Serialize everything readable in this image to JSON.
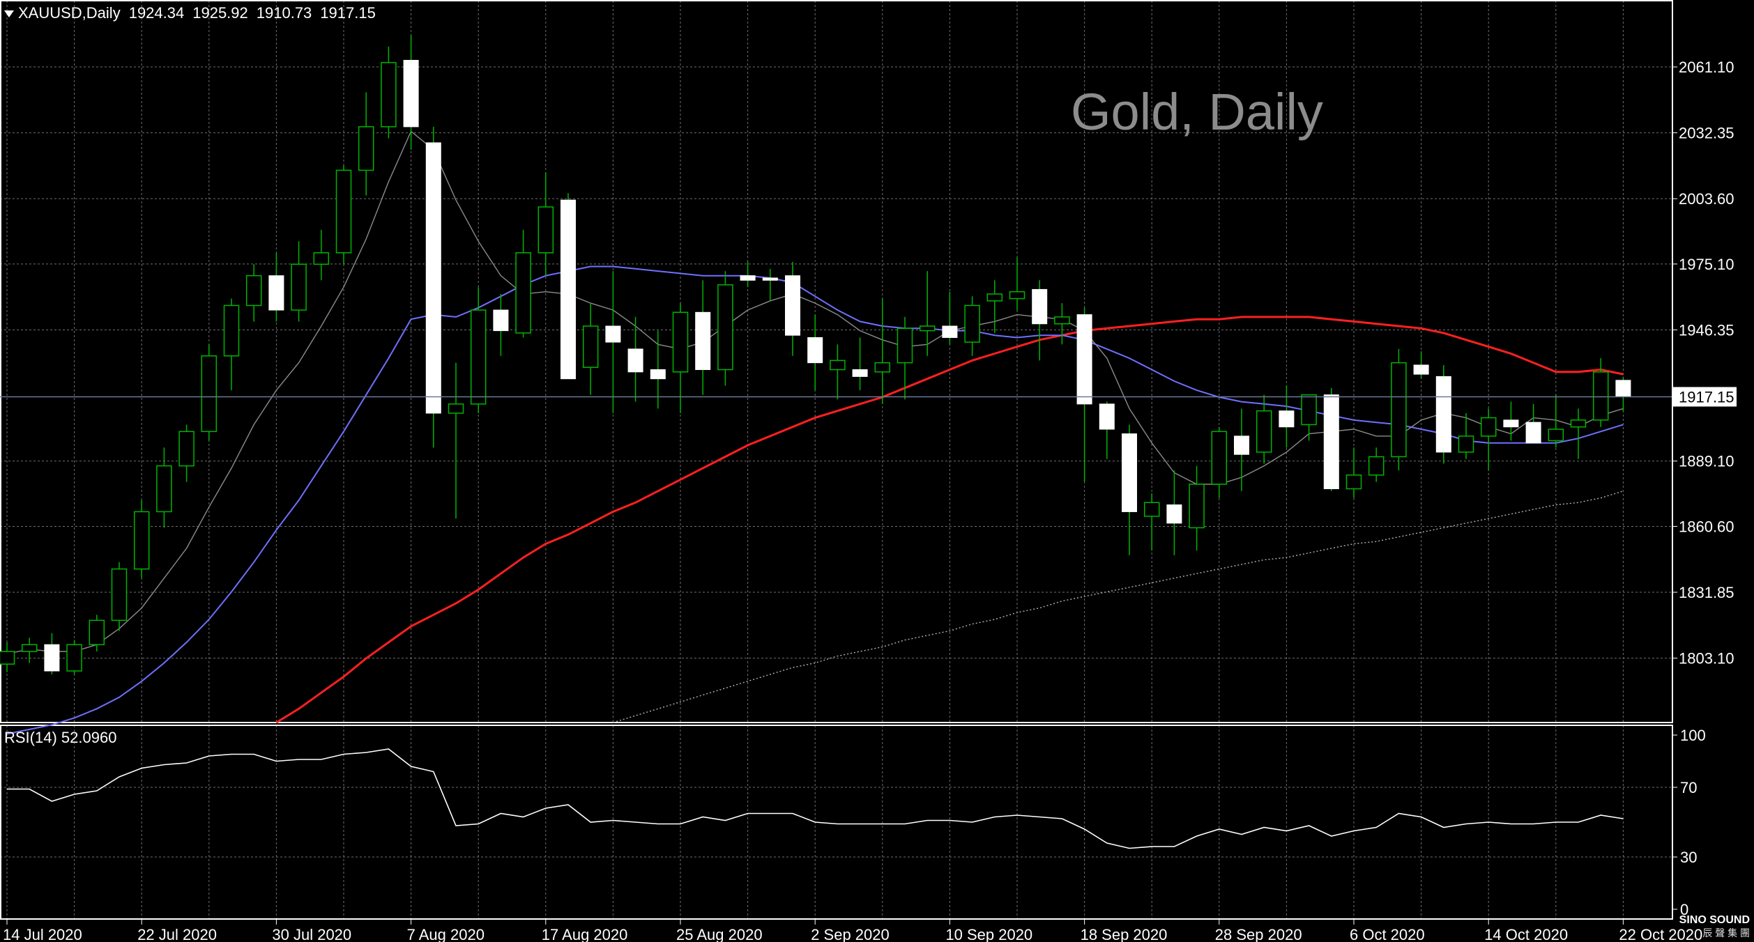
{
  "header": {
    "symbol_timeframe": "XAUUSD,Daily",
    "open": "1924.34",
    "high": "1925.92",
    "low": "1910.73",
    "close": "1917.15"
  },
  "watermark": "Gold, Daily",
  "rsi_label": "RSI(14) 52.0960",
  "brand": {
    "name": "SINO SOUND",
    "sub": "辰 聲 集 團"
  },
  "colors": {
    "background": "#000000",
    "grid": "#6f6f6f",
    "bull_candle_fill": "#000000",
    "bull_candle_outline": "#00b400",
    "bear_candle_fill": "#ffffff",
    "wick": "#00b400",
    "ma_fast": "#8c8c8c",
    "ma_mid": "#7070ff",
    "ma_slow": "#ff2020",
    "ma_long": "#b4b4b4",
    "rsi_line": "#ffffff",
    "price_line": "#6a7a9a"
  },
  "chart_data": [
    {
      "type": "candlestick",
      "instrument": "XAUUSD",
      "timeframe": "Daily",
      "watermark": "Gold, Daily",
      "ylim": [
        1775,
        2090
      ],
      "y_ticks": [
        "2061.10",
        "2032.35",
        "2003.60",
        "1975.10",
        "1946.35",
        "1917.15",
        "1889.10",
        "1860.60",
        "1831.85",
        "1803.10"
      ],
      "x_tick_labels": [
        "14 Jul 2020",
        "22 Jul 2020",
        "30 Jul 2020",
        "7 Aug 2020",
        "17 Aug 2020",
        "25 Aug 2020",
        "2 Sep 2020",
        "10 Sep 2020",
        "18 Sep 2020",
        "28 Sep 2020",
        "6 Oct 2020",
        "14 Oct 2020",
        "22 Oct 2020"
      ],
      "x_tick_bar_index": [
        0,
        6,
        12,
        18,
        24,
        30,
        36,
        42,
        48,
        54,
        60,
        66,
        72
      ],
      "current_price": "1917.15",
      "candles": [
        [
          1800.5,
          1810,
          1797,
          1806
        ],
        [
          1806,
          1812,
          1801,
          1809
        ],
        [
          1809,
          1814,
          1796,
          1797.5
        ],
        [
          1797.5,
          1811,
          1796,
          1809
        ],
        [
          1809,
          1822,
          1806,
          1819.6
        ],
        [
          1819.6,
          1845,
          1815,
          1842
        ],
        [
          1842,
          1872,
          1838,
          1867
        ],
        [
          1867,
          1895,
          1860,
          1887
        ],
        [
          1887,
          1905,
          1880,
          1902
        ],
        [
          1902,
          1940,
          1898,
          1935
        ],
        [
          1935,
          1960,
          1920,
          1957
        ],
        [
          1957,
          1975,
          1950,
          1970
        ],
        [
          1970,
          1980,
          1950,
          1955
        ],
        [
          1955,
          1985,
          1950,
          1975
        ],
        [
          1975,
          1990,
          1968,
          1980
        ],
        [
          1980,
          2018,
          1975,
          2016
        ],
        [
          2016,
          2050,
          2005,
          2035
        ],
        [
          2035,
          2070,
          2030,
          2063
        ],
        [
          2064,
          2075,
          2025,
          2035
        ],
        [
          2028,
          2035,
          1895,
          1910
        ],
        [
          1910,
          1932,
          1864,
          1914
        ],
        [
          1914,
          1965,
          1910,
          1955
        ],
        [
          1955,
          1962,
          1935,
          1946
        ],
        [
          1945,
          1990,
          1943,
          1980
        ],
        [
          1980,
          2015,
          1970,
          2000
        ],
        [
          2003,
          2006,
          1925,
          1925
        ],
        [
          1930,
          1958,
          1918,
          1948
        ],
        [
          1948,
          1972,
          1910,
          1941
        ],
        [
          1938,
          1952,
          1915,
          1928
        ],
        [
          1929,
          1946,
          1912,
          1925
        ],
        [
          1928,
          1958,
          1910,
          1954
        ],
        [
          1954,
          1968,
          1918,
          1929
        ],
        [
          1929,
          1972,
          1922,
          1966
        ],
        [
          1970,
          1976,
          1965,
          1968
        ],
        [
          1969,
          1973,
          1959,
          1968
        ],
        [
          1970,
          1976,
          1935,
          1944
        ],
        [
          1943,
          1953,
          1920,
          1932
        ],
        [
          1929,
          1940,
          1916,
          1933
        ],
        [
          1929,
          1943,
          1920,
          1926
        ],
        [
          1928,
          1960,
          1914,
          1932
        ],
        [
          1932,
          1952,
          1916,
          1947
        ],
        [
          1946,
          1972,
          1935,
          1948
        ],
        [
          1948,
          1963,
          1940,
          1943
        ],
        [
          1941,
          1961,
          1935,
          1957
        ],
        [
          1959,
          1968,
          1945,
          1962
        ],
        [
          1960,
          1978,
          1955,
          1963
        ],
        [
          1964,
          1968,
          1933,
          1949
        ],
        [
          1949,
          1958,
          1940,
          1952
        ],
        [
          1953,
          1956,
          1880,
          1914
        ],
        [
          1914,
          1915,
          1890,
          1903
        ],
        [
          1901,
          1905,
          1848,
          1867
        ],
        [
          1865,
          1875,
          1850,
          1871
        ],
        [
          1870,
          1885,
          1848,
          1862
        ],
        [
          1860,
          1887,
          1850,
          1879
        ],
        [
          1879,
          1904,
          1873,
          1902
        ],
        [
          1900,
          1912,
          1876,
          1892
        ],
        [
          1893,
          1918,
          1888,
          1911
        ],
        [
          1911,
          1922,
          1895,
          1904
        ],
        [
          1905,
          1918,
          1898,
          1918
        ],
        [
          1918,
          1921,
          1876,
          1877
        ],
        [
          1877,
          1895,
          1873,
          1883
        ],
        [
          1883,
          1895,
          1880,
          1891
        ],
        [
          1891,
          1938,
          1885,
          1932
        ],
        [
          1931,
          1937,
          1925,
          1927
        ],
        [
          1926,
          1931,
          1888,
          1893
        ],
        [
          1893,
          1910,
          1890,
          1900
        ],
        [
          1900,
          1912,
          1885,
          1908
        ],
        [
          1907,
          1915,
          1898,
          1904
        ],
        [
          1906,
          1914,
          1900,
          1897
        ],
        [
          1898,
          1918,
          1895,
          1903
        ],
        [
          1904,
          1912,
          1890,
          1907
        ],
        [
          1907,
          1934,
          1904,
          1928
        ],
        [
          1924.34,
          1925.92,
          1910.73,
          1917.15
        ]
      ],
      "ma_fast": [
        1805,
        1807,
        1806,
        1806,
        1809,
        1816,
        1825,
        1838,
        1851,
        1869,
        1886,
        1905,
        1920,
        1932,
        1948,
        1965,
        1986,
        2011,
        2033,
        2025,
        2003,
        1985,
        1970,
        1962,
        1963,
        1962,
        1958,
        1955,
        1948,
        1940,
        1938,
        1941,
        1948,
        1955,
        1959,
        1962,
        1958,
        1953,
        1946,
        1942,
        1939,
        1940,
        1946,
        1948,
        1950,
        1953,
        1952,
        1951,
        1946,
        1934,
        1912,
        1897,
        1884,
        1879,
        1879,
        1882,
        1887,
        1893,
        1901,
        1902,
        1903,
        1900,
        1900,
        1907,
        1910,
        1908,
        1904,
        1901,
        1908,
        1907,
        1904,
        1909,
        1912
      ],
      "ma_mid": [
        1770,
        1772,
        1774,
        1777,
        1781,
        1786,
        1793,
        1801,
        1810,
        1820,
        1832,
        1845,
        1859,
        1872,
        1887,
        1902,
        1918,
        1934,
        1951,
        1953,
        1952,
        1956,
        1961,
        1966,
        1970,
        1972,
        1974,
        1974,
        1973,
        1972,
        1971,
        1970,
        1970,
        1970,
        1969,
        1967,
        1961,
        1955,
        1950,
        1948,
        1947,
        1947,
        1946,
        1946,
        1944,
        1943,
        1944,
        1944,
        1942,
        1938,
        1934,
        1929,
        1924,
        1920,
        1917,
        1915,
        1914,
        1913,
        1911,
        1909,
        1907,
        1906,
        1905,
        1903,
        1901,
        1898,
        1897,
        1897,
        1897,
        1897,
        1899,
        1902,
        1905
      ],
      "ma_slow": [
        null,
        null,
        null,
        null,
        null,
        null,
        null,
        null,
        null,
        null,
        null,
        null,
        1775,
        1781,
        1788,
        1795,
        1803,
        1810,
        1817,
        1822,
        1827,
        1833,
        1840,
        1847,
        1853,
        1857,
        1862,
        1867,
        1871,
        1876,
        1881,
        1886,
        1891,
        1896,
        1900,
        1904,
        1908,
        1911,
        1914,
        1917,
        1921,
        1925,
        1929,
        1933,
        1936,
        1939,
        1942,
        1944,
        1946,
        1947,
        1948,
        1949,
        1950,
        1951,
        1951,
        1952,
        1952,
        1952,
        1952,
        1951,
        1950,
        1949,
        1948,
        1947,
        1945,
        1942,
        1939,
        1936,
        1932,
        1928,
        1928,
        1929,
        1927
      ],
      "ma_long": [
        null,
        null,
        null,
        null,
        null,
        null,
        null,
        null,
        null,
        null,
        null,
        null,
        null,
        null,
        null,
        null,
        null,
        null,
        null,
        null,
        null,
        null,
        null,
        null,
        null,
        null,
        null,
        1775,
        1778,
        1781,
        1784,
        1787,
        1790,
        1793,
        1796,
        1799,
        1801,
        1804,
        1806,
        1808,
        1811,
        1813,
        1815,
        1818,
        1820,
        1823,
        1825,
        1828,
        1830,
        1832,
        1834,
        1836,
        1838,
        1840,
        1842,
        1844,
        1846,
        1847,
        1849,
        1851,
        1853,
        1854,
        1856,
        1858,
        1860,
        1862,
        1864,
        1866,
        1868,
        1870,
        1871,
        1873,
        1876
      ]
    },
    {
      "type": "line",
      "indicator": "RSI(14)",
      "latest_value": "52.0960",
      "ylim": [
        0,
        100
      ],
      "y_ticks": [
        "100",
        "70",
        "30",
        "0"
      ],
      "values": [
        69,
        69,
        62,
        66,
        68,
        76,
        81,
        83,
        84,
        88,
        89,
        89,
        85,
        86,
        86,
        89,
        90,
        92,
        82,
        79,
        48,
        49,
        55,
        53,
        58,
        60,
        50,
        51,
        50,
        49,
        49,
        53,
        51,
        55,
        55,
        55,
        50,
        49,
        49,
        49,
        49,
        51,
        51,
        50,
        53,
        54,
        53,
        52,
        46,
        38,
        35,
        36,
        36,
        42,
        46,
        43,
        47,
        45,
        48,
        42,
        45,
        47,
        55,
        53,
        47,
        49,
        50,
        49,
        49,
        50,
        50,
        54,
        52
      ]
    }
  ]
}
